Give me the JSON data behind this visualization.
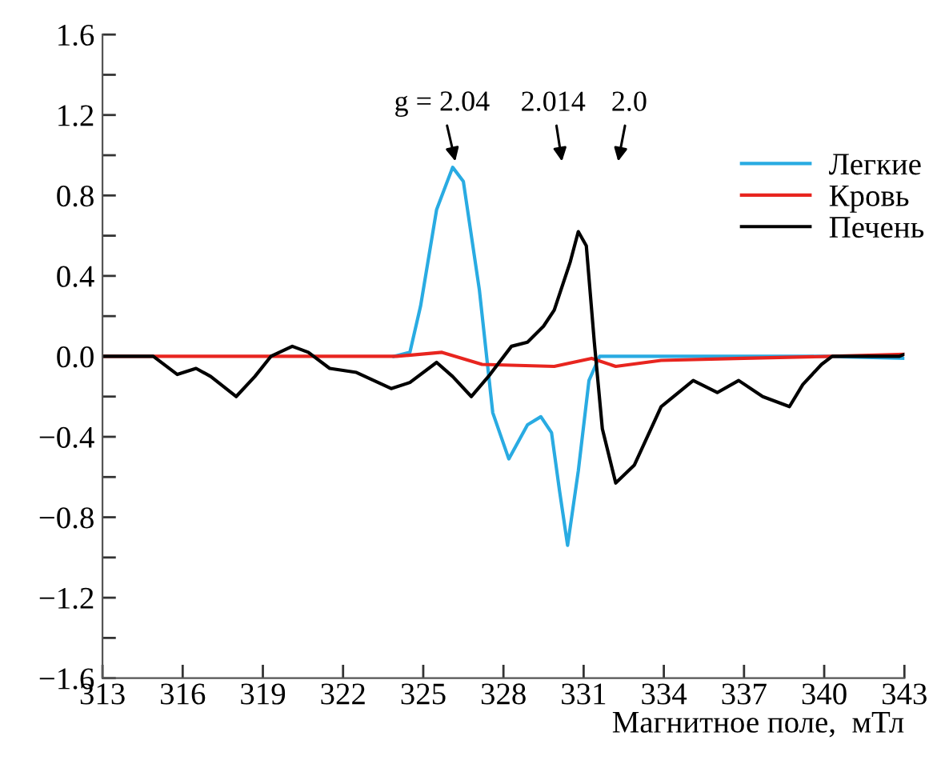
{
  "chart_data": {
    "type": "line",
    "xlabel": "Магнитное поле,  мТл",
    "xlim": [
      313,
      343
    ],
    "xticks": [
      313,
      316,
      319,
      322,
      325,
      328,
      331,
      334,
      337,
      340,
      343
    ],
    "ylim": [
      -1.6,
      1.6
    ],
    "yticks": [
      {
        "value": -1.6,
        "label": "−1.6"
      },
      {
        "value": -1.4,
        "label": null
      },
      {
        "value": -1.2,
        "label": "−1.2"
      },
      {
        "value": -1.0,
        "label": null
      },
      {
        "value": -0.8,
        "label": "−0.8"
      },
      {
        "value": -0.6,
        "label": null
      },
      {
        "value": -0.4,
        "label": "−0.4"
      },
      {
        "value": -0.2,
        "label": null
      },
      {
        "value": 0.0,
        "label": "0.0"
      },
      {
        "value": 0.2,
        "label": null
      },
      {
        "value": 0.4,
        "label": "0.4"
      },
      {
        "value": 0.6,
        "label": null
      },
      {
        "value": 0.8,
        "label": "0.8"
      },
      {
        "value": 1.0,
        "label": null
      },
      {
        "value": 1.2,
        "label": "1.2"
      },
      {
        "value": 1.4,
        "label": null
      },
      {
        "value": 1.6,
        "label": "1.6"
      }
    ],
    "grid": false,
    "legend": "top right",
    "marker": "none",
    "line_style": "solid",
    "annotations": [
      {
        "text": "g = 2.04",
        "x": 326.2,
        "y": 0.97
      },
      "2.014",
      "2.0"
    ],
    "series": [
      {
        "name": "Легкие",
        "color": "#29abe2",
        "x": [
          323.9,
          324.5,
          324.9,
          325.5,
          326.1,
          326.5,
          327.1,
          327.6,
          328.2,
          328.9,
          329.4,
          329.8,
          330.1,
          330.4,
          330.8,
          331.2,
          331.6,
          334,
          337,
          340,
          343
        ],
        "values": [
          0,
          0.02,
          0.25,
          0.73,
          0.94,
          0.87,
          0.33,
          -0.28,
          -0.51,
          -0.34,
          -0.3,
          -0.38,
          -0.67,
          -0.94,
          -0.57,
          -0.12,
          0,
          0,
          0,
          0,
          -0.01
        ]
      },
      {
        "name": "Кровь",
        "color": "#e8251f",
        "x": [
          313,
          318,
          322,
          324,
          325.7,
          327.2,
          329.9,
          331.3,
          332.2,
          333.9,
          337,
          340.3,
          343
        ],
        "values": [
          0,
          0,
          0,
          0,
          0.02,
          -0.04,
          -0.05,
          -0.01,
          -0.05,
          -0.02,
          -0.01,
          0,
          0.01
        ]
      },
      {
        "name": "Печень",
        "color": "#000000",
        "x": [
          313,
          314.9,
          315.8,
          316.5,
          317.05,
          318.0,
          318.7,
          319.3,
          320.1,
          320.7,
          321.5,
          322.5,
          323.8,
          324.5,
          325.5,
          326.1,
          326.8,
          327.5,
          328.3,
          328.9,
          329.5,
          329.9,
          330.5,
          330.8,
          331.1,
          331.4,
          331.7,
          332.2,
          332.9,
          333.9,
          335.1,
          336.0,
          336.8,
          337.7,
          338.7,
          339.2,
          339.9,
          340.3,
          342.8,
          343
        ],
        "values": [
          0,
          0,
          -0.09,
          -0.06,
          -0.1,
          -0.2,
          -0.1,
          0,
          0.05,
          0.02,
          -0.06,
          -0.08,
          -0.16,
          -0.13,
          -0.03,
          -0.1,
          -0.2,
          -0.09,
          0.05,
          0.07,
          0.15,
          0.23,
          0.47,
          0.62,
          0.55,
          0.07,
          -0.36,
          -0.63,
          -0.54,
          -0.25,
          -0.12,
          -0.18,
          -0.12,
          -0.2,
          -0.25,
          -0.14,
          -0.04,
          0,
          0,
          0.01
        ]
      }
    ]
  }
}
